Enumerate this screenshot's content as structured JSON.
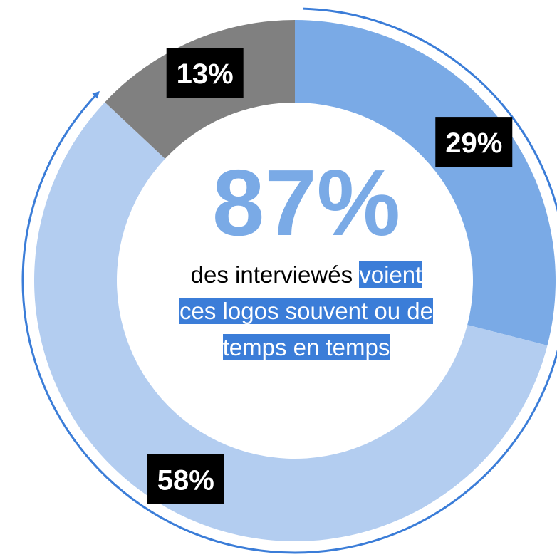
{
  "chart_data": {
    "type": "pie",
    "donut": true,
    "values": [
      29,
      58,
      13
    ],
    "value_labels": [
      "29%",
      "58%",
      "13%"
    ],
    "colors": [
      "#7aaae6",
      "#b3cdf0",
      "#808080"
    ],
    "center_value": "87%",
    "center_lines": [
      [
        {
          "text": "des interviewés ",
          "highlight": false
        },
        {
          "text": "voient",
          "highlight": true
        }
      ],
      [
        {
          "text": "ces logos souvent ou de",
          "highlight": true
        }
      ],
      [
        {
          "text": "temps en temps",
          "highlight": true
        }
      ]
    ]
  }
}
